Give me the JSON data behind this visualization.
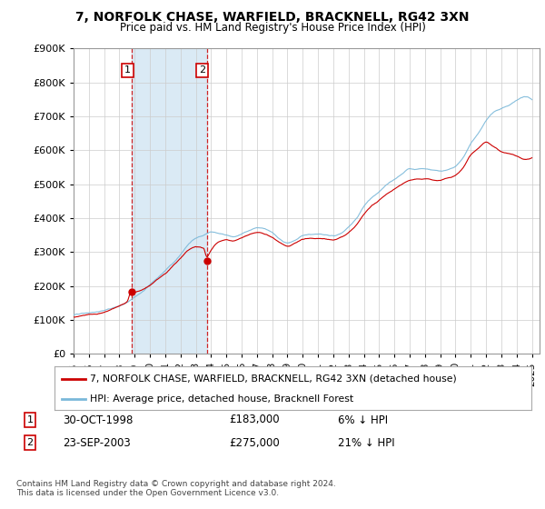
{
  "title": "7, NORFOLK CHASE, WARFIELD, BRACKNELL, RG42 3XN",
  "subtitle": "Price paid vs. HM Land Registry's House Price Index (HPI)",
  "legend_line1": "7, NORFOLK CHASE, WARFIELD, BRACKNELL, RG42 3XN (detached house)",
  "legend_line2": "HPI: Average price, detached house, Bracknell Forest",
  "footnote": "Contains HM Land Registry data © Crown copyright and database right 2024.\nThis data is licensed under the Open Government Licence v3.0.",
  "transaction1_date": "30-OCT-1998",
  "transaction1_price": "£183,000",
  "transaction1_hpi": "6% ↓ HPI",
  "transaction2_date": "23-SEP-2003",
  "transaction2_price": "£275,000",
  "transaction2_hpi": "21% ↓ HPI",
  "hpi_color": "#7ab8d9",
  "price_color": "#cc0000",
  "marker_color": "#cc0000",
  "shaded_color": "#daeaf5",
  "vline_color": "#cc0000",
  "hatch_color": "#cccccc",
  "ylim": [
    0,
    900000
  ],
  "yticks": [
    0,
    100000,
    200000,
    300000,
    400000,
    500000,
    600000,
    700000,
    800000,
    900000
  ],
  "background_color": "#ffffff",
  "grid_color": "#cccccc",
  "t1_x": 1998.83,
  "t2_x": 2003.72,
  "t1_y": 183000,
  "t2_y": 275000,
  "xmin": 1995.0,
  "xmax": 2025.5
}
